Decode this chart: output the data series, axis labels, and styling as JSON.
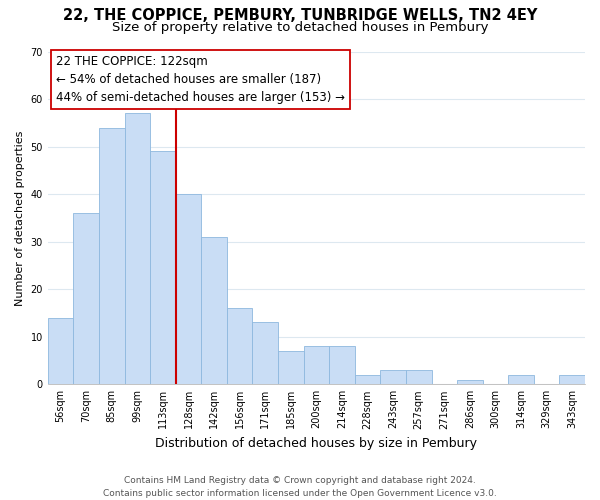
{
  "title": "22, THE COPPICE, PEMBURY, TUNBRIDGE WELLS, TN2 4EY",
  "subtitle": "Size of property relative to detached houses in Pembury",
  "xlabel": "Distribution of detached houses by size in Pembury",
  "ylabel": "Number of detached properties",
  "bar_labels": [
    "56sqm",
    "70sqm",
    "85sqm",
    "99sqm",
    "113sqm",
    "128sqm",
    "142sqm",
    "156sqm",
    "171sqm",
    "185sqm",
    "200sqm",
    "214sqm",
    "228sqm",
    "243sqm",
    "257sqm",
    "271sqm",
    "286sqm",
    "300sqm",
    "314sqm",
    "329sqm",
    "343sqm"
  ],
  "bar_values": [
    14,
    36,
    54,
    57,
    49,
    40,
    31,
    16,
    13,
    7,
    8,
    8,
    2,
    3,
    3,
    0,
    1,
    0,
    2,
    0,
    2
  ],
  "bar_color": "#c9ddf5",
  "bar_edge_color": "#8eb8de",
  "vline_x_index": 5,
  "vline_color": "#cc0000",
  "annotation_line1": "22 THE COPPICE: 122sqm",
  "annotation_line2": "← 54% of detached houses are smaller (187)",
  "annotation_line3": "44% of semi-detached houses are larger (153) →",
  "annotation_box_color": "#ffffff",
  "annotation_box_edge": "#cc0000",
  "ylim": [
    0,
    70
  ],
  "yticks": [
    0,
    10,
    20,
    30,
    40,
    50,
    60,
    70
  ],
  "footer_line1": "Contains HM Land Registry data © Crown copyright and database right 2024.",
  "footer_line2": "Contains public sector information licensed under the Open Government Licence v3.0.",
  "bg_color": "#ffffff",
  "grid_color": "#dde8f0",
  "title_fontsize": 10.5,
  "subtitle_fontsize": 9.5,
  "ylabel_fontsize": 8,
  "xlabel_fontsize": 9,
  "tick_fontsize": 7,
  "ann_fontsize": 8.5,
  "footer_fontsize": 6.5
}
